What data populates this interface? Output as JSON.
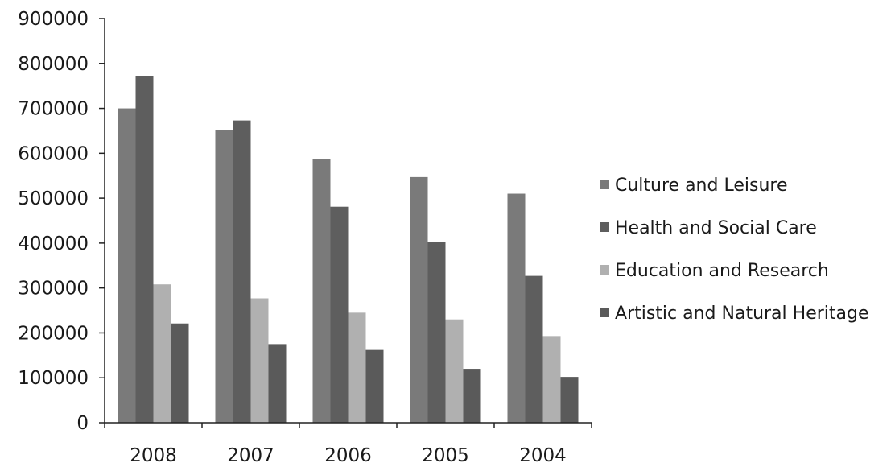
{
  "chart_data": {
    "type": "bar",
    "categories": [
      "2008",
      "2007",
      "2006",
      "2005",
      "2004"
    ],
    "series": [
      {
        "name": "Culture and Leisure",
        "color": "#7a7a7a",
        "values": [
          700000,
          652000,
          587000,
          547000,
          510000
        ]
      },
      {
        "name": "Health and Social Care",
        "color": "#5e5e5e",
        "values": [
          771000,
          673000,
          481000,
          403000,
          327000
        ]
      },
      {
        "name": "Education and Research",
        "color": "#b0b0b0",
        "values": [
          308000,
          277000,
          245000,
          230000,
          193000
        ]
      },
      {
        "name": "Artistic and Natural Heritage",
        "color": "#5a5a5a",
        "values": [
          221000,
          175000,
          162000,
          120000,
          102000
        ]
      }
    ],
    "yticks": [
      "0",
      "100000",
      "200000",
      "300000",
      "400000",
      "500000",
      "600000",
      "700000",
      "800000",
      "900000"
    ],
    "ylim": [
      0,
      900000
    ],
    "legend_position": "right",
    "grid": false
  }
}
